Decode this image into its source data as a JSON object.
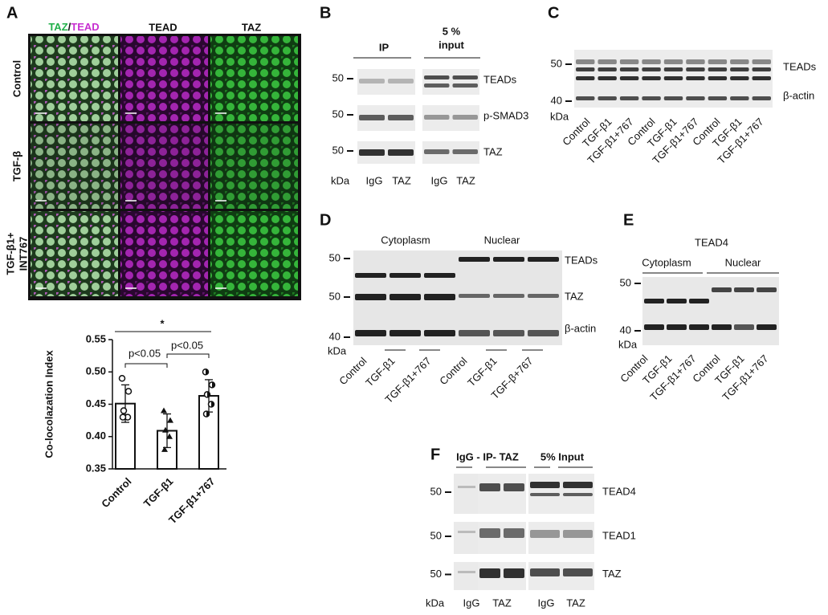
{
  "panel_a": {
    "letter": "A",
    "merge_header": [
      "TAZ",
      "/",
      "TEAD"
    ],
    "headers": [
      "TEAD",
      "TAZ"
    ],
    "rows": [
      [
        "Control"
      ],
      [
        "TGF-β"
      ],
      [
        "TGF-β1+",
        "INT767"
      ]
    ]
  },
  "chart_data": {
    "type": "bar",
    "ylabel": "Co-locolazation Index",
    "categories": [
      "Control",
      "TGF-β1",
      "TGF-β1+767"
    ],
    "values": [
      0.451,
      0.409,
      0.463
    ],
    "errors": [
      0.029,
      0.026,
      0.025
    ],
    "points": [
      [
        0.49,
        0.47,
        0.44,
        0.43,
        0.43
      ],
      [
        0.44,
        0.425,
        0.41,
        0.4,
        0.38
      ],
      [
        0.5,
        0.48,
        0.465,
        0.45,
        0.435
      ]
    ],
    "markers": [
      "circle-open",
      "triangle",
      "circle-half"
    ],
    "color": "#ffffff",
    "ylim": [
      0.35,
      0.55
    ],
    "yticks": [
      0.35,
      {
        "value": 0.4,
        "label": "0.40"
      },
      0.45,
      {
        "value": 0.5,
        "label": "0.50"
      },
      0.55
    ],
    "annotations": [
      "*",
      "p<0.05",
      "p<0.05"
    ]
  },
  "panel_b": {
    "letter": "B",
    "headers": [
      "IP",
      "5 %",
      "input"
    ],
    "markers": [
      "50",
      "50",
      "50"
    ],
    "bands": [
      "TEADs",
      "p-SMAD3",
      "TAZ"
    ],
    "unit": "kDa",
    "lanes": [
      "IgG",
      "TAZ",
      "IgG",
      "TAZ"
    ]
  },
  "panel_c": {
    "letter": "C",
    "markers": [
      "50",
      "40"
    ],
    "bands": [
      "TEADs",
      "β-actin"
    ],
    "unit": "kDa",
    "lanes": [
      "Control",
      "TGF-β1",
      "TGF-β1+767",
      "Control",
      "TGF-β1",
      "TGF-β1+767",
      "Control",
      "TGF-β1",
      "TGF-β1+767"
    ]
  },
  "panel_d": {
    "letter": "D",
    "groups": [
      "Cytoplasm",
      "Nuclear"
    ],
    "markers": [
      "50",
      "50",
      "40"
    ],
    "bands": [
      "TEADs",
      "TAZ",
      "β-actin"
    ],
    "unit": "kDa",
    "lanes": [
      "Control",
      "TGF-β1",
      "TGF-β1+767",
      "Control",
      "TGF-β1",
      "TGF-β+767"
    ]
  },
  "panel_e": {
    "letter": "E",
    "title": "TEAD4",
    "groups": [
      "Cytoplasm",
      "Nuclear"
    ],
    "markers": [
      "50",
      "40"
    ],
    "unit": "kDa",
    "lanes": [
      "Control",
      "TGF-β1",
      "TGF-β1+767",
      "Control",
      "TGF-β1",
      "TGF-β1+767"
    ]
  },
  "panel_f": {
    "letter": "F",
    "groups": [
      "IgG - IP- TAZ",
      "5% Input"
    ],
    "markers": [
      "50",
      "50",
      "50"
    ],
    "bands": [
      "TEAD4",
      "TEAD1",
      "TAZ"
    ],
    "unit": "kDa",
    "lanes": [
      "IgG",
      "TAZ",
      "IgG",
      "TAZ"
    ]
  }
}
